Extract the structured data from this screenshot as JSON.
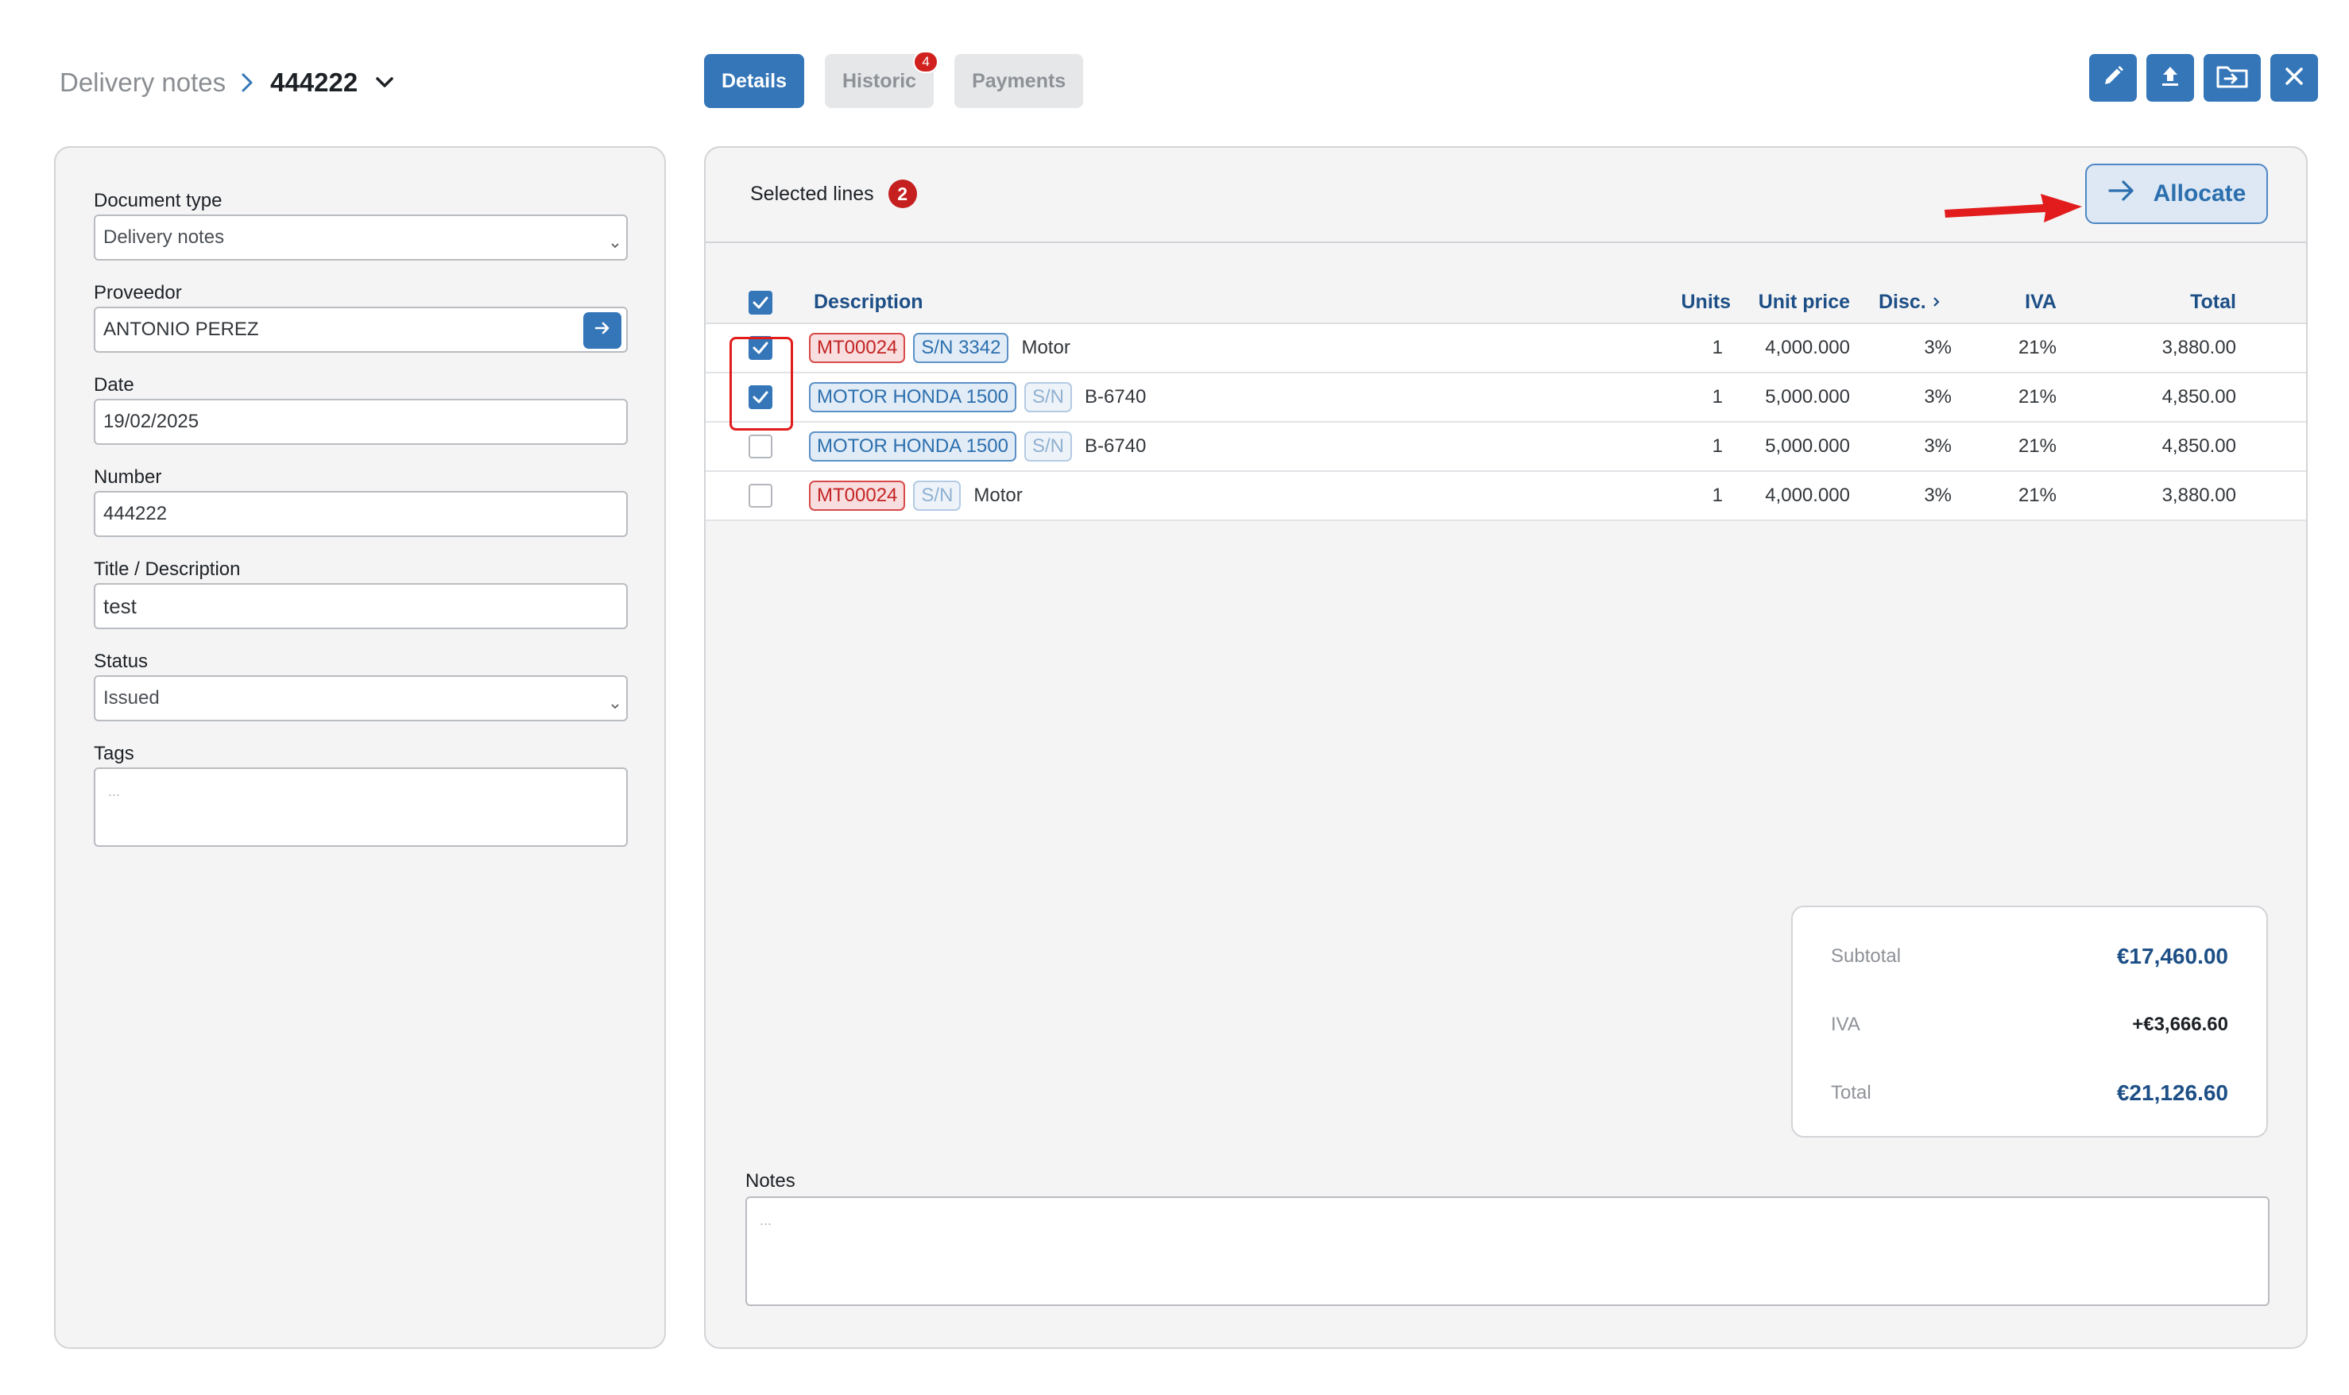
{
  "breadcrumb": {
    "parent": "Delivery notes",
    "current": "444222"
  },
  "tabs": [
    {
      "label": "Details"
    },
    {
      "label": "Historic",
      "badge": "4"
    },
    {
      "label": "Payments"
    }
  ],
  "actions": [
    {
      "icon": "pencil-icon"
    },
    {
      "icon": "upload-icon"
    },
    {
      "icon": "folder-move-icon"
    },
    {
      "icon": "close-icon"
    }
  ],
  "form": {
    "document_type": {
      "label": "Document type",
      "value": "Delivery notes"
    },
    "proveedor": {
      "label": "Proveedor",
      "value": "ANTONIO PEREZ"
    },
    "date": {
      "label": "Date",
      "value": "19/02/2025"
    },
    "number": {
      "label": "Number",
      "value": "444222"
    },
    "title": {
      "label": "Title / Description",
      "value": "test"
    },
    "status": {
      "label": "Status",
      "value": "Issued"
    },
    "tags": {
      "label": "Tags",
      "placeholder": "..."
    }
  },
  "selection": {
    "label": "Selected lines",
    "count": "2"
  },
  "allocate_label": "Allocate",
  "table": {
    "headers": {
      "description": "Description",
      "units": "Units",
      "unit_price": "Unit price",
      "disc": "Disc.",
      "iva": "IVA",
      "total": "Total"
    },
    "rows": [
      {
        "checked": true,
        "code": "MT00024",
        "code_type": "code",
        "sn": "S/N 3342",
        "sn_empty": false,
        "text": "Motor",
        "units": "1",
        "unit_price": "4,000.000",
        "disc": "3%",
        "iva": "21%",
        "total": "3,880.00"
      },
      {
        "checked": true,
        "code": "MOTOR HONDA 1500",
        "code_type": "model",
        "sn": "S/N",
        "sn_empty": true,
        "text": "B-6740",
        "units": "1",
        "unit_price": "5,000.000",
        "disc": "3%",
        "iva": "21%",
        "total": "4,850.00"
      },
      {
        "checked": false,
        "code": "MOTOR HONDA 1500",
        "code_type": "model",
        "sn": "S/N",
        "sn_empty": true,
        "text": "B-6740",
        "units": "1",
        "unit_price": "5,000.000",
        "disc": "3%",
        "iva": "21%",
        "total": "4,850.00"
      },
      {
        "checked": false,
        "code": "MT00024",
        "code_type": "code",
        "sn": "S/N",
        "sn_empty": true,
        "text": "Motor",
        "units": "1",
        "unit_price": "4,000.000",
        "disc": "3%",
        "iva": "21%",
        "total": "3,880.00"
      }
    ]
  },
  "totals": {
    "subtotal": {
      "label": "Subtotal",
      "value": "€17,460.00"
    },
    "iva": {
      "label": "IVA",
      "value": "+€3,666.60"
    },
    "total": {
      "label": "Total",
      "value": "€21,126.60"
    }
  },
  "notes": {
    "label": "Notes",
    "placeholder": "..."
  },
  "colors": {
    "primary": "#3476b8",
    "badge_red": "#c51f1f",
    "annotation_red": "#e21c1c"
  }
}
